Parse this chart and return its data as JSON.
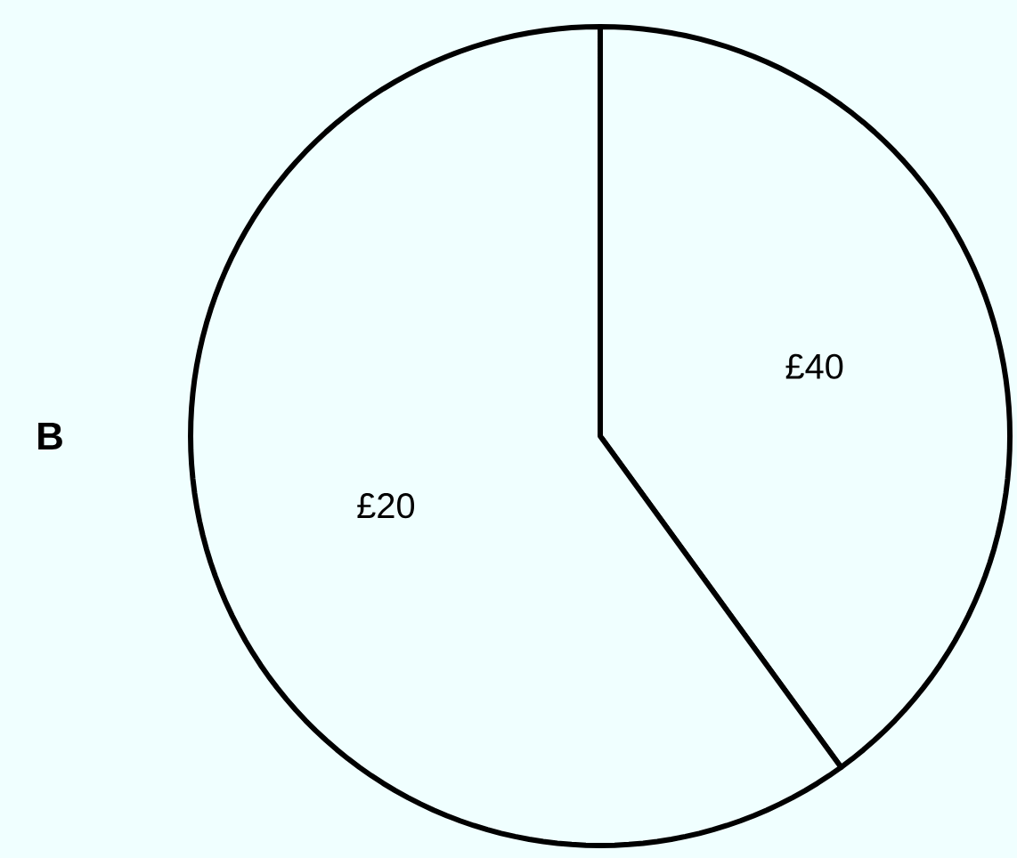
{
  "chart_data": {
    "type": "pie",
    "title": "B",
    "categories": [
      "£40",
      "£20"
    ],
    "values": [
      40,
      60
    ],
    "colors": [
      "#f0ffff",
      "#f0ffff"
    ]
  }
}
